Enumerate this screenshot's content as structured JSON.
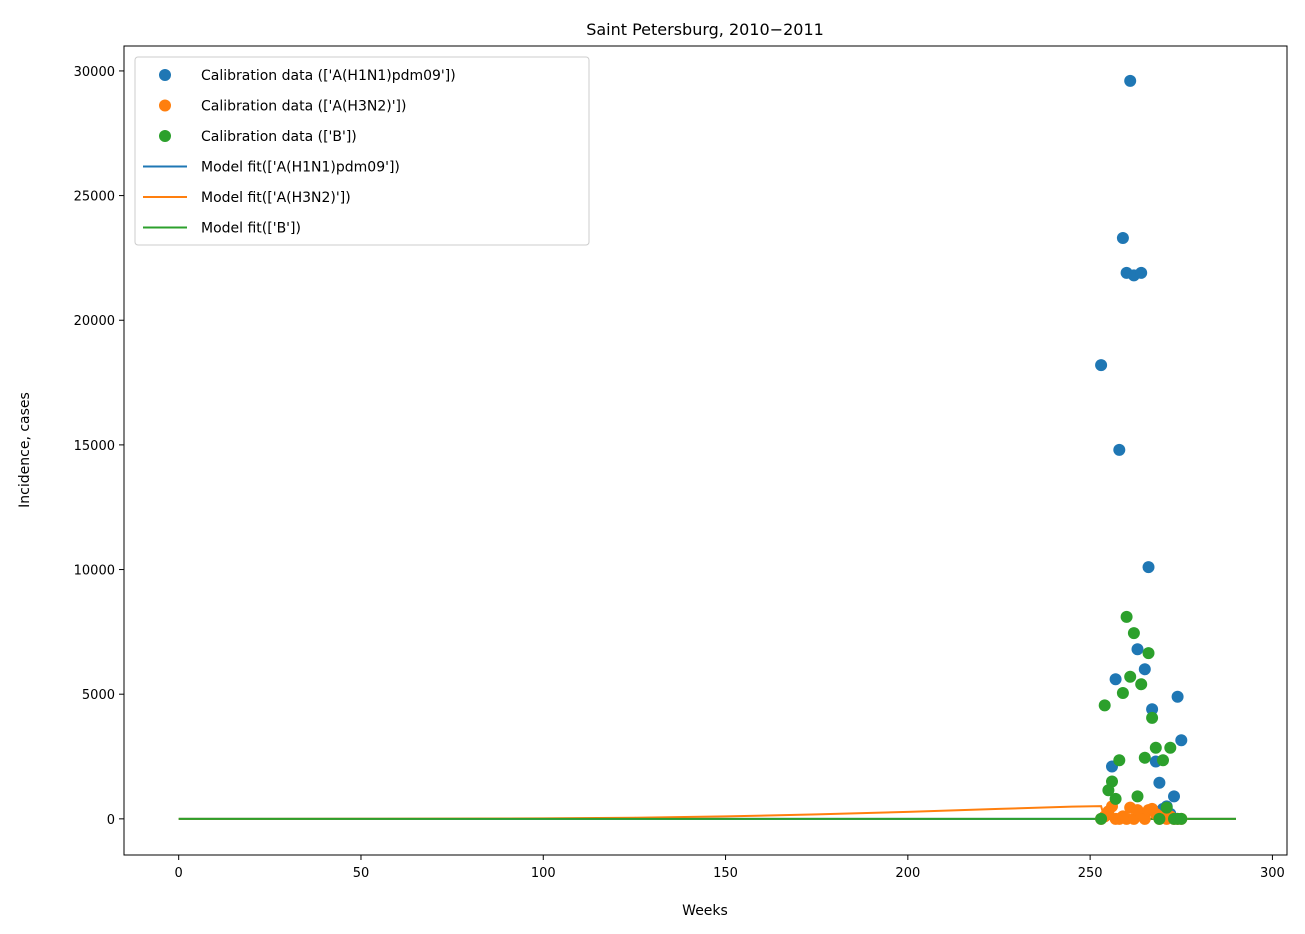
{
  "chart_data": {
    "type": "scatter",
    "title": "Saint Petersburg, 2010−2011",
    "xlabel": "Weeks",
    "ylabel": "Incidence, cases",
    "xlim": [
      -15,
      304
    ],
    "ylim": [
      -1450,
      31000
    ],
    "xticks": [
      0,
      50,
      100,
      150,
      200,
      250,
      300
    ],
    "yticks": [
      0,
      5000,
      10000,
      15000,
      20000,
      25000,
      30000
    ],
    "grid": false,
    "legend_position": "top-left",
    "colors": {
      "h1n1": "#1f77b4",
      "h3n2": "#ff7f0e",
      "b": "#2ca02c"
    },
    "legend": [
      {
        "label": "Calibration data (['A(H1N1)pdm09'])",
        "kind": "marker",
        "color": "#1f77b4"
      },
      {
        "label": "Calibration data (['A(H3N2)'])",
        "kind": "marker",
        "color": "#ff7f0e"
      },
      {
        "label": "Calibration data (['B'])",
        "kind": "marker",
        "color": "#2ca02c"
      },
      {
        "label": "Model fit(['A(H1N1)pdm09'])",
        "kind": "line",
        "color": "#1f77b4"
      },
      {
        "label": "Model fit(['A(H3N2)'])",
        "kind": "line",
        "color": "#ff7f0e"
      },
      {
        "label": "Model fit(['B'])",
        "kind": "line",
        "color": "#2ca02c"
      }
    ],
    "scatter_series": [
      {
        "name": "Calibration data (['A(H1N1)pdm09'])",
        "color": "#1f77b4",
        "x": [
          253,
          256,
          257,
          258,
          259,
          260,
          261,
          262,
          263,
          264,
          265,
          266,
          267,
          268,
          269,
          270,
          271,
          272,
          273,
          274,
          275
        ],
        "y": [
          18200,
          2100,
          5600,
          14800,
          23300,
          21900,
          29600,
          21800,
          6800,
          21900,
          6000,
          10100,
          4400,
          2300,
          1450,
          400,
          500,
          200,
          900,
          4900,
          3150
        ]
      },
      {
        "name": "Calibration data (['A(H3N2)'])",
        "color": "#ff7f0e",
        "x": [
          253,
          254,
          255,
          256,
          257,
          258,
          259,
          260,
          261,
          262,
          263,
          264,
          265,
          266,
          267,
          268,
          269,
          270,
          271,
          272,
          273,
          274,
          275
        ],
        "y": [
          0,
          100,
          300,
          500,
          0,
          0,
          100,
          0,
          450,
          0,
          350,
          200,
          0,
          350,
          400,
          200,
          0,
          100,
          0,
          100,
          0,
          0,
          0
        ]
      },
      {
        "name": "Calibration data (['B'])",
        "color": "#2ca02c",
        "x": [
          253,
          254,
          255,
          256,
          257,
          258,
          259,
          260,
          261,
          262,
          263,
          264,
          265,
          266,
          267,
          268,
          269,
          270,
          271,
          272,
          273,
          274,
          275
        ],
        "y": [
          0,
          4550,
          1150,
          1500,
          800,
          2350,
          5050,
          8100,
          5700,
          7450,
          900,
          5400,
          2450,
          6650,
          4050,
          2850,
          0,
          2350,
          450,
          2850,
          0,
          0,
          0
        ]
      }
    ],
    "line_series": [
      {
        "name": "Model fit(['A(H1N1)pdm09'])",
        "color": "#1f77b4",
        "x": [
          0,
          290
        ],
        "y": [
          0,
          0
        ]
      },
      {
        "name": "Model fit(['A(H3N2)'])",
        "color": "#ff7f0e",
        "x": [
          0,
          50,
          100,
          125,
          150,
          175,
          200,
          225,
          245,
          253,
          254,
          290
        ],
        "y": [
          0,
          2,
          20,
          45,
          100,
          180,
          280,
          400,
          490,
          510,
          0,
          0
        ]
      },
      {
        "name": "Model fit(['B'])",
        "color": "#2ca02c",
        "x": [
          0,
          290
        ],
        "y": [
          0,
          0
        ]
      }
    ]
  }
}
